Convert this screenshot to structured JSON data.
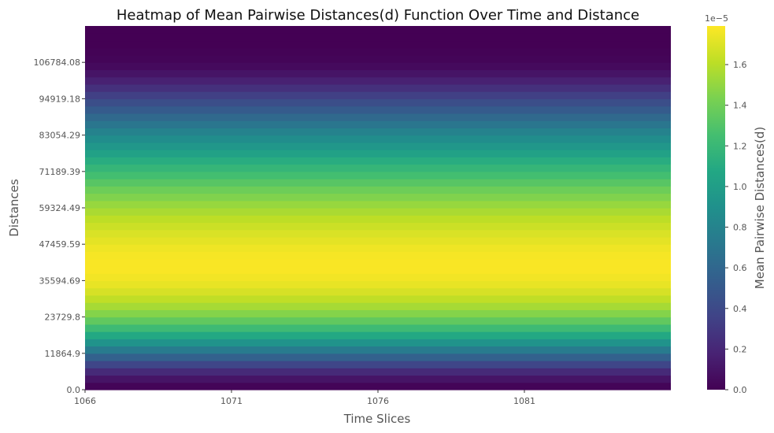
{
  "chart_data": {
    "type": "heatmap",
    "title": "Heatmap of Mean Pairwise Distances(d) Function Over Time and Distance",
    "xlabel": "Time Slices",
    "ylabel": "Distances",
    "x_ticks": [
      "1066",
      "1071",
      "1076",
      "1081"
    ],
    "x_range": [
      1066,
      1086
    ],
    "y_ticks": [
      0.0,
      11864.9,
      23729.8,
      35594.69,
      47459.59,
      59324.49,
      71189.39,
      83054.29,
      94919.18,
      106784.08
    ],
    "y_tick_labels": [
      "0.0",
      "11864.9",
      "23729.8",
      "35594.69",
      "47459.59",
      "59324.49",
      "71189.39",
      "83054.29",
      "94919.18",
      "106784.08"
    ],
    "y_range": [
      0,
      118650
    ],
    "row_distance_step": 2373,
    "colorbar": {
      "label": "Mean Pairwise Distances(d)",
      "scale_text": "1e−5",
      "ticks": [
        "0.0",
        "0.2",
        "0.4",
        "0.6",
        "0.8",
        "1.0",
        "1.2",
        "1.4",
        "1.6"
      ],
      "tick_values": [
        0.0,
        0.2,
        0.4,
        0.6,
        0.8,
        1.0,
        1.2,
        1.4,
        1.6
      ],
      "range": [
        0.0,
        1.79
      ],
      "colormap": "viridis"
    },
    "row_values": [
      0.02,
      0.1,
      0.22,
      0.38,
      0.56,
      0.74,
      0.92,
      1.08,
      1.22,
      1.35,
      1.46,
      1.55,
      1.62,
      1.68,
      1.73,
      1.76,
      1.78,
      1.78,
      1.77,
      1.75,
      1.72,
      1.69,
      1.65,
      1.61,
      1.56,
      1.51,
      1.45,
      1.39,
      1.32,
      1.25,
      1.18,
      1.11,
      1.03,
      0.95,
      0.87,
      0.79,
      0.7,
      0.61,
      0.52,
      0.43,
      0.34,
      0.25,
      0.17,
      0.1,
      0.05,
      0.02,
      0.01,
      0.0,
      0.0,
      0.0
    ]
  }
}
